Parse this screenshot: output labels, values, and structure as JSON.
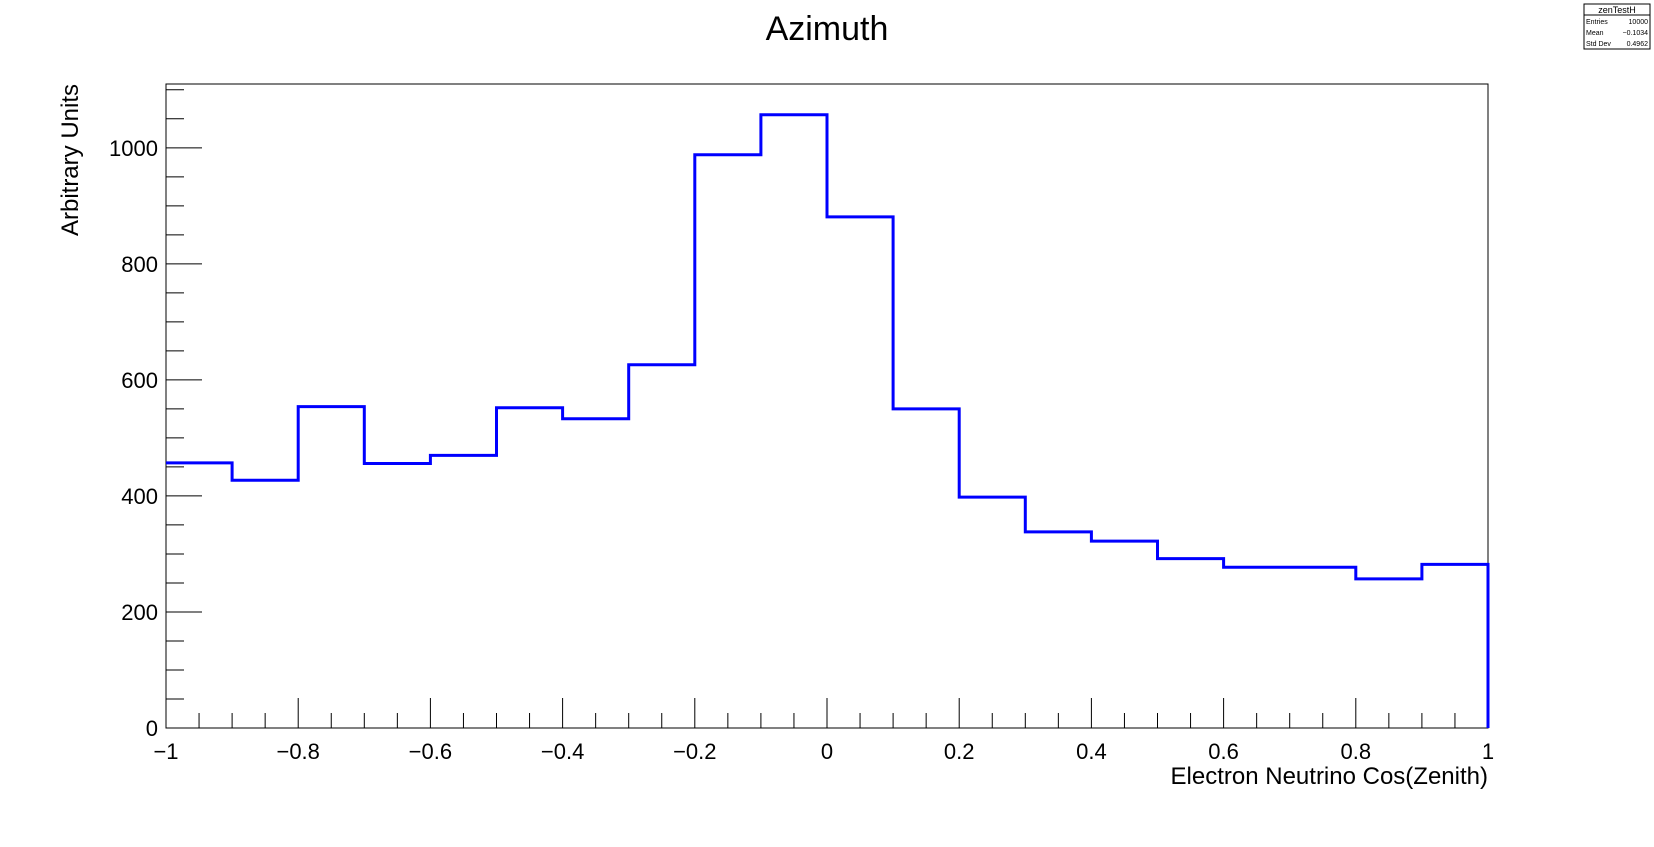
{
  "chart_data": {
    "type": "bar",
    "title": "Azimuth",
    "xlabel": "Electron Neutrino Cos(Zenith)",
    "ylabel": "Arbitrary Units",
    "xlim": [
      -1,
      1
    ],
    "ylim": [
      0,
      1110
    ],
    "grid": false,
    "bin_edges": [
      -1,
      -0.9,
      -0.8,
      -0.7,
      -0.6,
      -0.5,
      -0.4,
      -0.3,
      -0.2,
      -0.1,
      0,
      0.1,
      0.2,
      0.3,
      0.4,
      0.5,
      0.6,
      0.7,
      0.8,
      0.9,
      1
    ],
    "values": [
      457,
      427,
      554,
      456,
      470,
      552,
      533,
      626,
      988,
      1057,
      881,
      550,
      398,
      338,
      322,
      292,
      277,
      277,
      257,
      282
    ],
    "series_color": "#0000ff",
    "x_ticks": [
      {
        "value": -1,
        "label": "−1"
      },
      {
        "value": -0.8,
        "label": "−0.8"
      },
      {
        "value": -0.6,
        "label": "−0.6"
      },
      {
        "value": -0.4,
        "label": "−0.4"
      },
      {
        "value": -0.2,
        "label": "−0.2"
      },
      {
        "value": 0,
        "label": "0"
      },
      {
        "value": 0.2,
        "label": "0.2"
      },
      {
        "value": 0.4,
        "label": "0.4"
      },
      {
        "value": 0.6,
        "label": "0.6"
      },
      {
        "value": 0.8,
        "label": "0.8"
      },
      {
        "value": 1,
        "label": "1"
      }
    ],
    "y_ticks": [
      {
        "value": 0,
        "label": "0"
      },
      {
        "value": 200,
        "label": "200"
      },
      {
        "value": 400,
        "label": "400"
      },
      {
        "value": 600,
        "label": "600"
      },
      {
        "value": 800,
        "label": "800"
      },
      {
        "value": 1000,
        "label": "1000"
      }
    ],
    "stats_box": {
      "name": "zenTestH",
      "rows": [
        {
          "label": "Entries",
          "value": "10000"
        },
        {
          "label": "Mean",
          "value": "−0.1034"
        },
        {
          "label": "Std Dev",
          "value": "0.4962"
        }
      ]
    }
  }
}
